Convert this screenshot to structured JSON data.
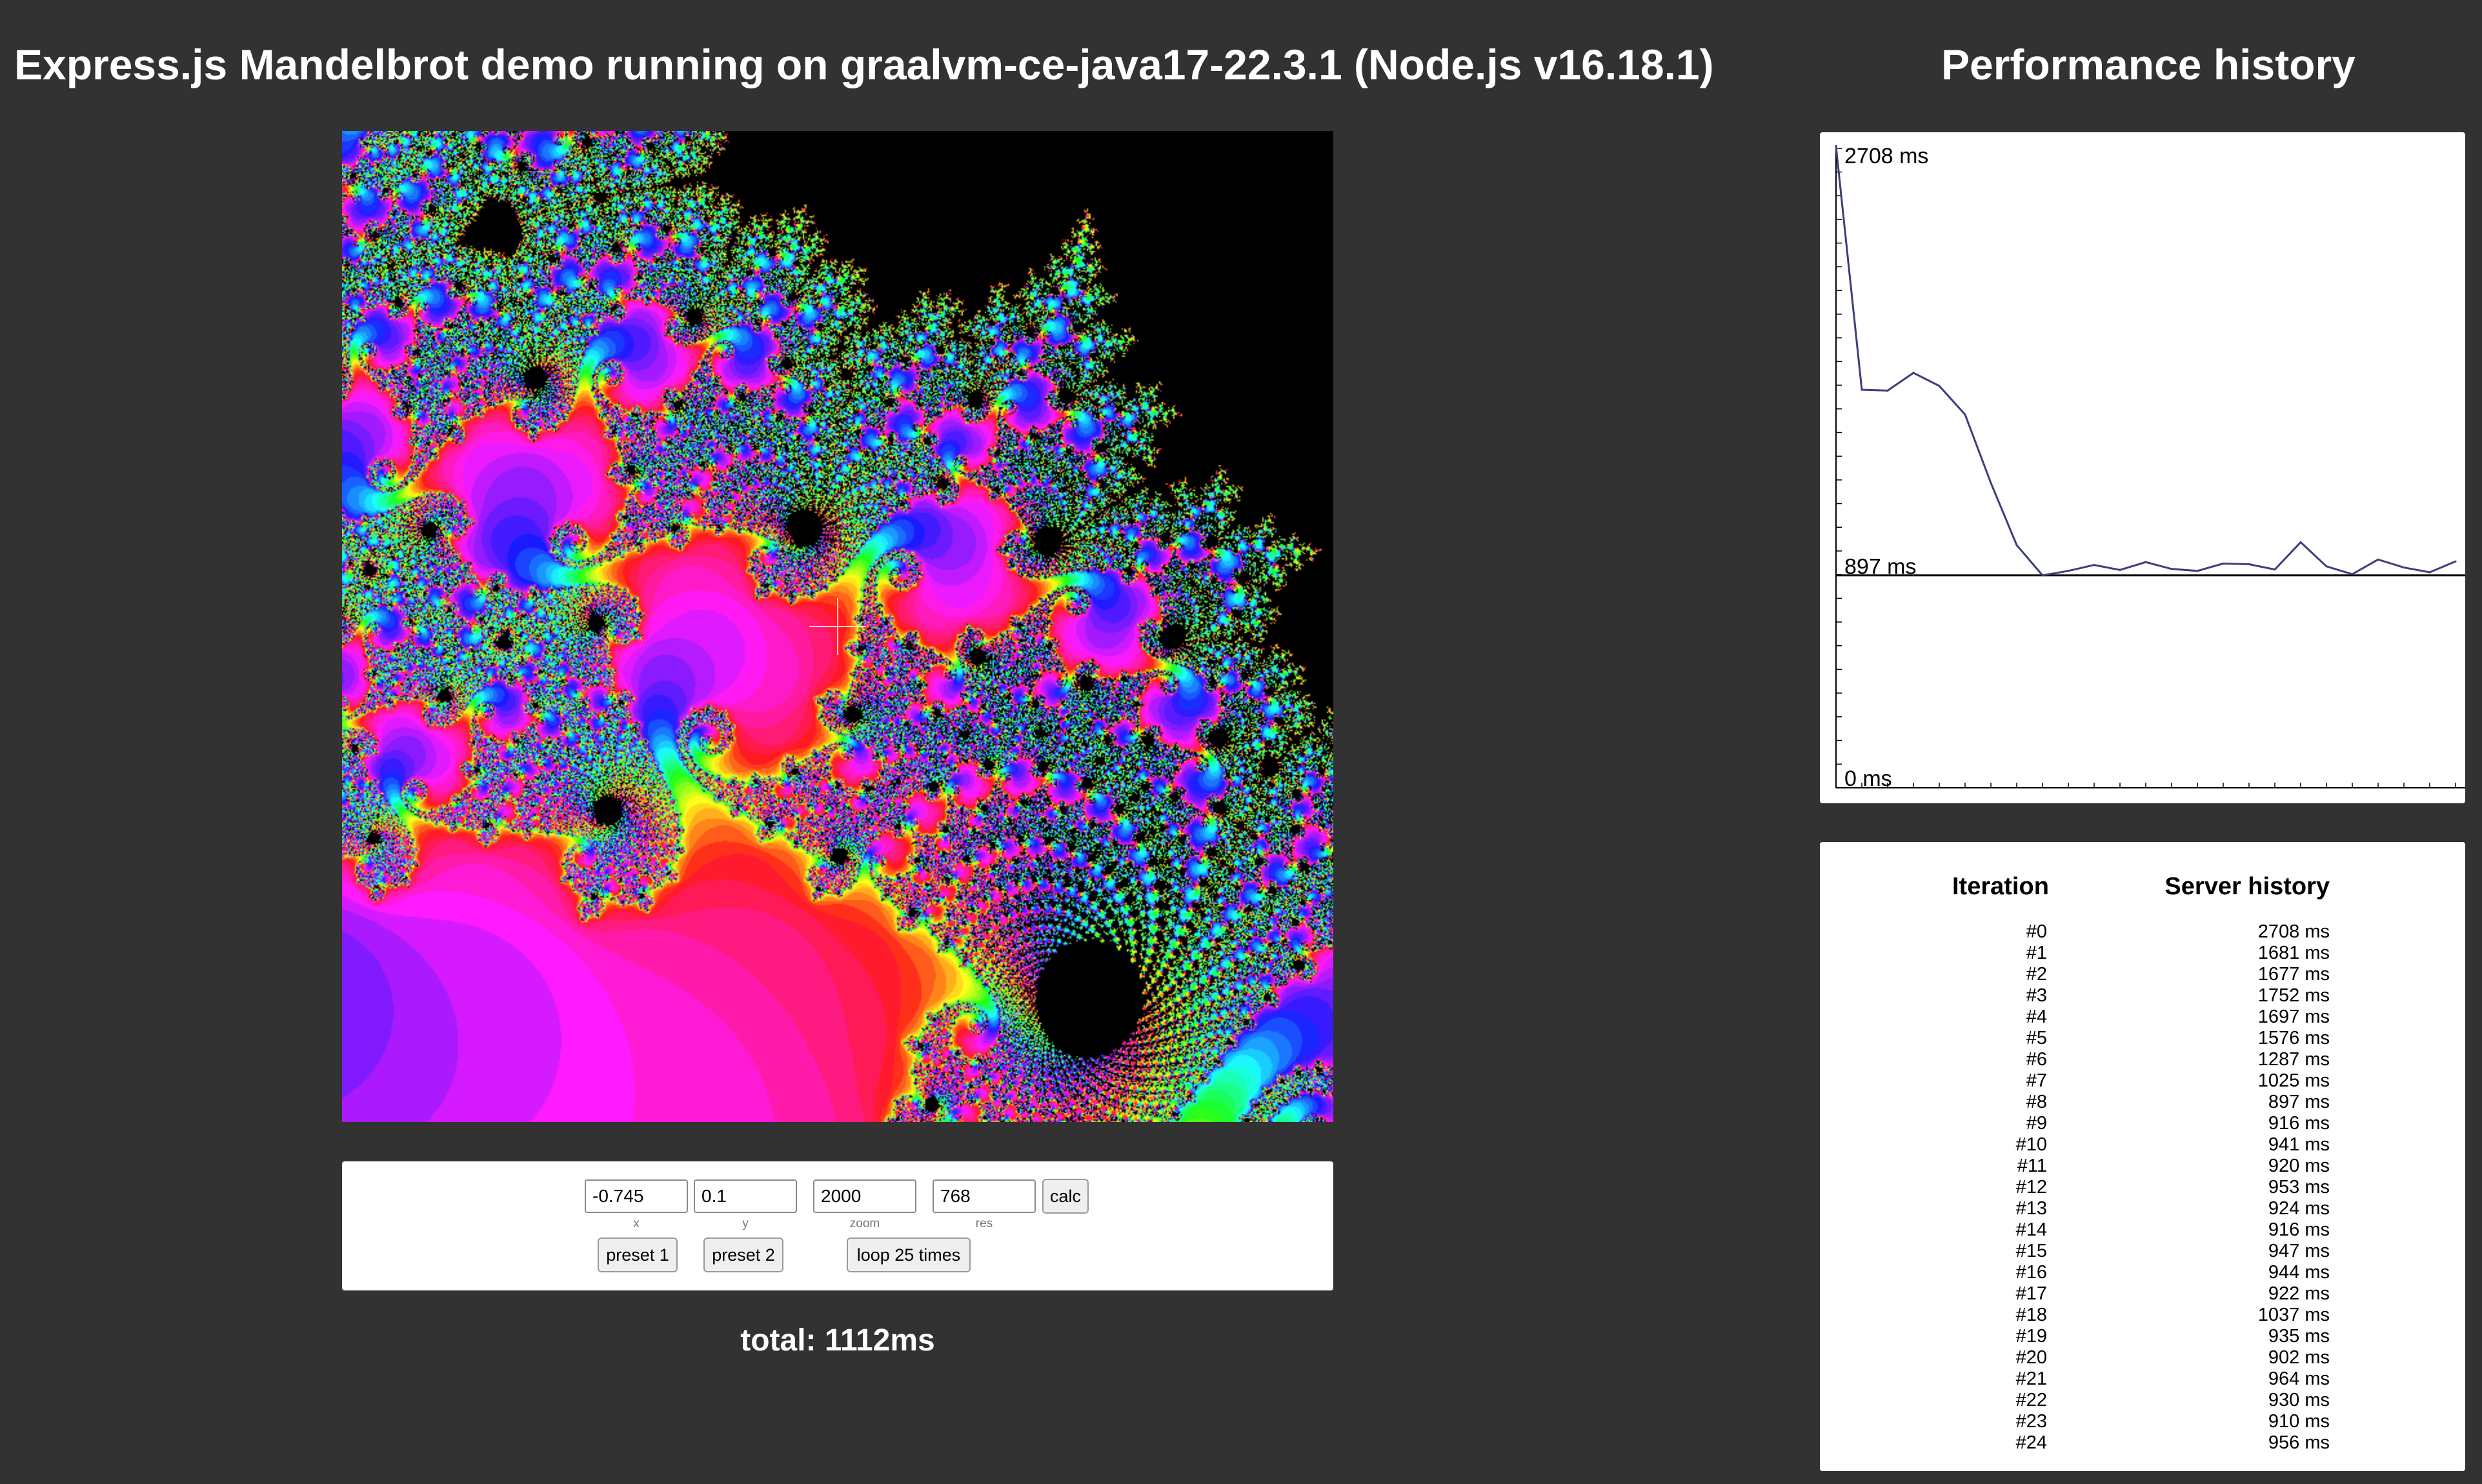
{
  "header": {
    "title": "Express.js Mandelbrot demo running on graalvm-ce-java17-22.3.1 (Node.js v16.18.1)",
    "perf_title": "Performance history"
  },
  "controls": {
    "x": {
      "value": "-0.745",
      "label": "x"
    },
    "y": {
      "value": "0.1",
      "label": "y"
    },
    "zoom": {
      "value": "2000",
      "label": "zoom"
    },
    "res": {
      "value": "768",
      "label": "res"
    },
    "calc_label": "calc",
    "preset1_label": "preset 1",
    "preset2_label": "preset 2",
    "loop_label": "loop 25 times"
  },
  "total": "total: 1112ms",
  "chart_data": {
    "type": "line",
    "ylabel_max": "2708 ms",
    "ylabel_mid": "897 ms",
    "ylabel_min": "0 ms",
    "ylim": [
      0,
      2708
    ],
    "reference_line": 897,
    "x": [
      0,
      1,
      2,
      3,
      4,
      5,
      6,
      7,
      8,
      9,
      10,
      11,
      12,
      13,
      14,
      15,
      16,
      17,
      18,
      19,
      20,
      21,
      22,
      23,
      24
    ],
    "values": [
      2708,
      1681,
      1677,
      1752,
      1697,
      1576,
      1287,
      1025,
      897,
      916,
      941,
      920,
      953,
      924,
      916,
      947,
      944,
      922,
      1037,
      935,
      902,
      964,
      930,
      910,
      956
    ]
  },
  "history": {
    "col_iteration": "Iteration",
    "col_server": "Server history",
    "rows": [
      {
        "iter": "#0",
        "time": "2708 ms"
      },
      {
        "iter": "#1",
        "time": "1681 ms"
      },
      {
        "iter": "#2",
        "time": "1677 ms"
      },
      {
        "iter": "#3",
        "time": "1752 ms"
      },
      {
        "iter": "#4",
        "time": "1697 ms"
      },
      {
        "iter": "#5",
        "time": "1576 ms"
      },
      {
        "iter": "#6",
        "time": "1287 ms"
      },
      {
        "iter": "#7",
        "time": "1025 ms"
      },
      {
        "iter": "#8",
        "time": "897 ms"
      },
      {
        "iter": "#9",
        "time": "916 ms"
      },
      {
        "iter": "#10",
        "time": "941 ms"
      },
      {
        "iter": "#11",
        "time": "920 ms"
      },
      {
        "iter": "#12",
        "time": "953 ms"
      },
      {
        "iter": "#13",
        "time": "924 ms"
      },
      {
        "iter": "#14",
        "time": "916 ms"
      },
      {
        "iter": "#15",
        "time": "947 ms"
      },
      {
        "iter": "#16",
        "time": "944 ms"
      },
      {
        "iter": "#17",
        "time": "922 ms"
      },
      {
        "iter": "#18",
        "time": "1037 ms"
      },
      {
        "iter": "#19",
        "time": "935 ms"
      },
      {
        "iter": "#20",
        "time": "902 ms"
      },
      {
        "iter": "#21",
        "time": "964 ms"
      },
      {
        "iter": "#22",
        "time": "930 ms"
      },
      {
        "iter": "#23",
        "time": "910 ms"
      },
      {
        "iter": "#24",
        "time": "956 ms"
      }
    ]
  },
  "colors": {
    "background": "#323232",
    "panel": "#ffffff",
    "chart_line": "#3a3f7a"
  }
}
